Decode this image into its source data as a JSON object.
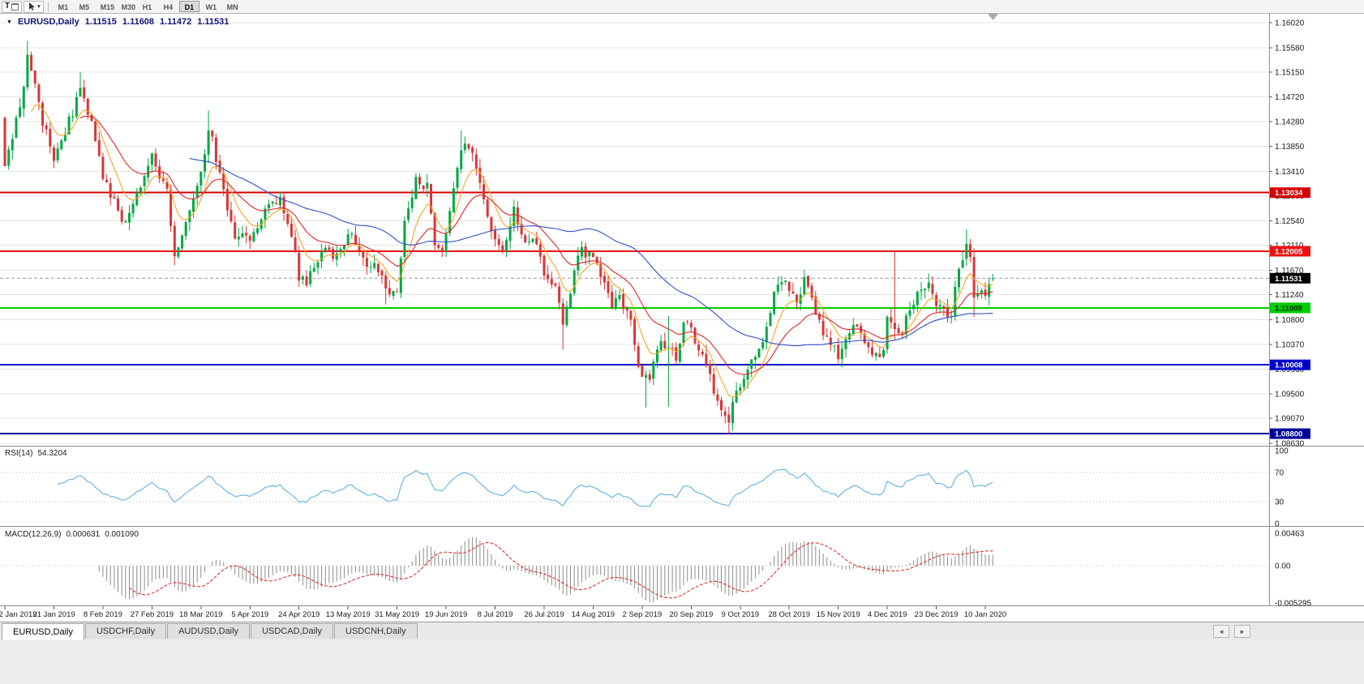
{
  "toolbar": {
    "tool_button_label": "T",
    "timeframes": [
      "M1",
      "M5",
      "M15",
      "M30",
      "H1",
      "H4",
      "D1",
      "W1",
      "MN"
    ],
    "active_timeframe": "D1"
  },
  "icons": {
    "title_marker": "▼",
    "dropdown_caret": "▾",
    "tab_scroll_left": "◄",
    "tab_scroll_right": "►"
  },
  "chart": {
    "title": {
      "symbol_period": "EURUSD,Daily",
      "open": "1.11515",
      "high": "1.11608",
      "low": "1.11472",
      "close": "1.11531"
    },
    "price_axis": {
      "top_value": 1.1602,
      "bottom_value": 1.0863,
      "labels": [
        "1.16020",
        "1.15580",
        "1.15150",
        "1.14720",
        "1.14280",
        "1.13850",
        "1.13410",
        "1.12980",
        "1.12540",
        "1.12110",
        "1.11670",
        "1.11240",
        "1.10800",
        "1.10370",
        "1.09930",
        "1.09500",
        "1.09070",
        "1.08630"
      ]
    },
    "levels": [
      {
        "label": "1.13034",
        "value": 1.13034,
        "color": "#d60000",
        "text": "#ffffff"
      },
      {
        "label": "1.12005",
        "value": 1.12005,
        "color": "#ee1111",
        "text": "#ffffff"
      },
      {
        "label": "1.11009",
        "value": 1.11009,
        "color": "#00cc00",
        "text": "#002b00"
      },
      {
        "label": "1.10008",
        "value": 1.10008,
        "color": "#0000cd",
        "text": "#ffffff"
      },
      {
        "label": "1.08800",
        "value": 1.088,
        "color": "#00009b",
        "text": "#ffffff"
      }
    ],
    "current_price": {
      "label": "1.11531",
      "value": 1.11531,
      "bg": "#000000",
      "text": "#ffffff"
    },
    "date_axis": {
      "bars_per_label": 13,
      "labels": [
        "2 Jan 2019",
        "21 Jan 2019",
        "8 Feb 2019",
        "27 Feb 2019",
        "18 Mar 2019",
        "5 Apr 2019",
        "24 Apr 2019",
        "13 May 2019",
        "31 May 2019",
        "19 Jun 2019",
        "8 Jul 2019",
        "26 Jul 2019",
        "14 Aug 2019",
        "2 Sep 2019",
        "20 Sep 2019",
        "9 Oct 2019",
        "28 Oct 2019",
        "15 Nov 2019",
        "4 Dec 2019",
        "23 Dec 2019",
        "10 Jan 2020"
      ]
    }
  },
  "indicators": {
    "rsi": {
      "name": "RSI(14)",
      "value": "54.3204",
      "axis_labels": [
        "100",
        "70",
        "30",
        "0"
      ],
      "level_lines": [
        70,
        30
      ],
      "color": "#53a8e2"
    },
    "macd": {
      "name": "MACD(12,26,9)",
      "main_value": "0.000631",
      "signal_value": "0.001090",
      "axis_labels": [
        "0.00463",
        "0.00",
        "-0.005295"
      ],
      "axis_top": 0.00463,
      "axis_bottom": -0.005295
    }
  },
  "tabs": [
    {
      "label": "EURUSD,Daily",
      "active": true
    },
    {
      "label": "USDCHF,Daily",
      "active": false
    },
    {
      "label": "AUDUSD,Daily",
      "active": false
    },
    {
      "label": "USDCAD,Daily",
      "active": false
    },
    {
      "label": "USDCNH,Daily",
      "active": false
    }
  ],
  "chart_data": {
    "type": "candlestick",
    "symbol": "EURUSD",
    "timeframe": "Daily",
    "bars": 263,
    "first_open": 1.1435,
    "last_candle": {
      "open": 1.11515,
      "high": 1.11608,
      "low": 1.11472,
      "close": 1.11531
    },
    "visible_high": 1.157,
    "visible_low": 1.0879,
    "up_color": "#00a843",
    "down_color": "#d93636",
    "price_anchors": [
      [
        0,
        1.134
      ],
      [
        2,
        1.14
      ],
      [
        5,
        1.149
      ],
      [
        6,
        1.154
      ],
      [
        8,
        1.15
      ],
      [
        10,
        1.143
      ],
      [
        13,
        1.1365
      ],
      [
        17,
        1.143
      ],
      [
        20,
        1.148
      ],
      [
        23,
        1.1435
      ],
      [
        26,
        1.1325
      ],
      [
        30,
        1.1268
      ],
      [
        32,
        1.1248
      ],
      [
        35,
        1.1308
      ],
      [
        39,
        1.1368
      ],
      [
        43,
        1.1305
      ],
      [
        45,
        1.1198
      ],
      [
        48,
        1.1245
      ],
      [
        52,
        1.1335
      ],
      [
        54,
        1.1415
      ],
      [
        56,
        1.1368
      ],
      [
        58,
        1.13
      ],
      [
        61,
        1.1228
      ],
      [
        65,
        1.1215
      ],
      [
        69,
        1.1268
      ],
      [
        73,
        1.129
      ],
      [
        76,
        1.1228
      ],
      [
        78,
        1.1158
      ],
      [
        80,
        1.1138
      ],
      [
        82,
        1.1175
      ],
      [
        84,
        1.1205
      ],
      [
        87,
        1.1195
      ],
      [
        91,
        1.1228
      ],
      [
        94,
        1.1205
      ],
      [
        96,
        1.1168
      ],
      [
        99,
        1.1172
      ],
      [
        101,
        1.1132
      ],
      [
        104,
        1.1138
      ],
      [
        106,
        1.1245
      ],
      [
        109,
        1.1333
      ],
      [
        112,
        1.131
      ],
      [
        114,
        1.1218
      ],
      [
        116,
        1.1198
      ],
      [
        118,
        1.1275
      ],
      [
        121,
        1.1388
      ],
      [
        124,
        1.1365
      ],
      [
        127,
        1.1285
      ],
      [
        130,
        1.1225
      ],
      [
        132,
        1.121
      ],
      [
        135,
        1.1268
      ],
      [
        138,
        1.1218
      ],
      [
        141,
        1.1212
      ],
      [
        143,
        1.1148
      ],
      [
        146,
        1.114
      ],
      [
        148,
        1.1068
      ],
      [
        150,
        1.1122
      ],
      [
        152,
        1.1198
      ],
      [
        155,
        1.12
      ],
      [
        157,
        1.1172
      ],
      [
        159,
        1.1142
      ],
      [
        161,
        1.1102
      ],
      [
        163,
        1.112
      ],
      [
        165,
        1.11
      ],
      [
        167,
        1.1042
      ],
      [
        169,
        1.0972
      ],
      [
        171,
        1.0978
      ],
      [
        173,
        1.1035
      ],
      [
        176,
        1.103
      ],
      [
        178,
        1.1012
      ],
      [
        180,
        1.1065
      ],
      [
        182,
        1.1072
      ],
      [
        184,
        1.102
      ],
      [
        186,
        1.1
      ],
      [
        188,
        1.0952
      ],
      [
        190,
        1.0928
      ],
      [
        192,
        1.0902
      ],
      [
        193,
        1.0935
      ],
      [
        195,
        1.0968
      ],
      [
        198,
        1.1005
      ],
      [
        201,
        1.1032
      ],
      [
        204,
        1.1125
      ],
      [
        206,
        1.1152
      ],
      [
        208,
        1.113
      ],
      [
        210,
        1.1112
      ],
      [
        212,
        1.115
      ],
      [
        214,
        1.1128
      ],
      [
        216,
        1.1072
      ],
      [
        219,
        1.1038
      ],
      [
        221,
        1.1018
      ],
      [
        223,
        1.1055
      ],
      [
        225,
        1.1072
      ],
      [
        227,
        1.106
      ],
      [
        230,
        1.1015
      ],
      [
        233,
        1.1018
      ],
      [
        234,
        1.1078
      ],
      [
        236,
        1.106
      ],
      [
        238,
        1.1065
      ],
      [
        240,
        1.109
      ],
      [
        242,
        1.113
      ],
      [
        245,
        1.115
      ],
      [
        247,
        1.1112
      ],
      [
        249,
        1.1092
      ],
      [
        251,
        1.1098
      ],
      [
        253,
        1.1175
      ],
      [
        255,
        1.121
      ],
      [
        256,
        1.1185
      ],
      [
        257,
        1.1112
      ],
      [
        259,
        1.1125
      ],
      [
        261,
        1.114
      ],
      [
        262,
        1.11531
      ]
    ],
    "spikes": [
      {
        "i": 6,
        "high": 1.157
      },
      {
        "i": 20,
        "high": 1.1515
      },
      {
        "i": 45,
        "low": 1.1176
      },
      {
        "i": 54,
        "high": 1.1448
      },
      {
        "i": 78,
        "low": 1.1141
      },
      {
        "i": 101,
        "low": 1.1107
      },
      {
        "i": 121,
        "high": 1.1412
      },
      {
        "i": 148,
        "low": 1.1027
      },
      {
        "i": 170,
        "low": 1.0926
      },
      {
        "i": 176,
        "low": 1.0927,
        "high": 1.1087
      },
      {
        "i": 192,
        "low": 1.0879
      },
      {
        "i": 236,
        "high": 1.1199,
        "low": 1.1045
      },
      {
        "i": 255,
        "high": 1.1239
      },
      {
        "i": 257,
        "low": 1.1085
      }
    ],
    "moving_averages": [
      {
        "type": "ema",
        "period": 8,
        "color": "#f5a623"
      },
      {
        "type": "ema",
        "period": 21,
        "color": "#e02828"
      },
      {
        "type": "sma",
        "period": 50,
        "color": "#3050c8"
      }
    ],
    "horizontal_lines": [
      1.13034,
      1.12005,
      1.11009,
      1.10008,
      1.088
    ]
  }
}
